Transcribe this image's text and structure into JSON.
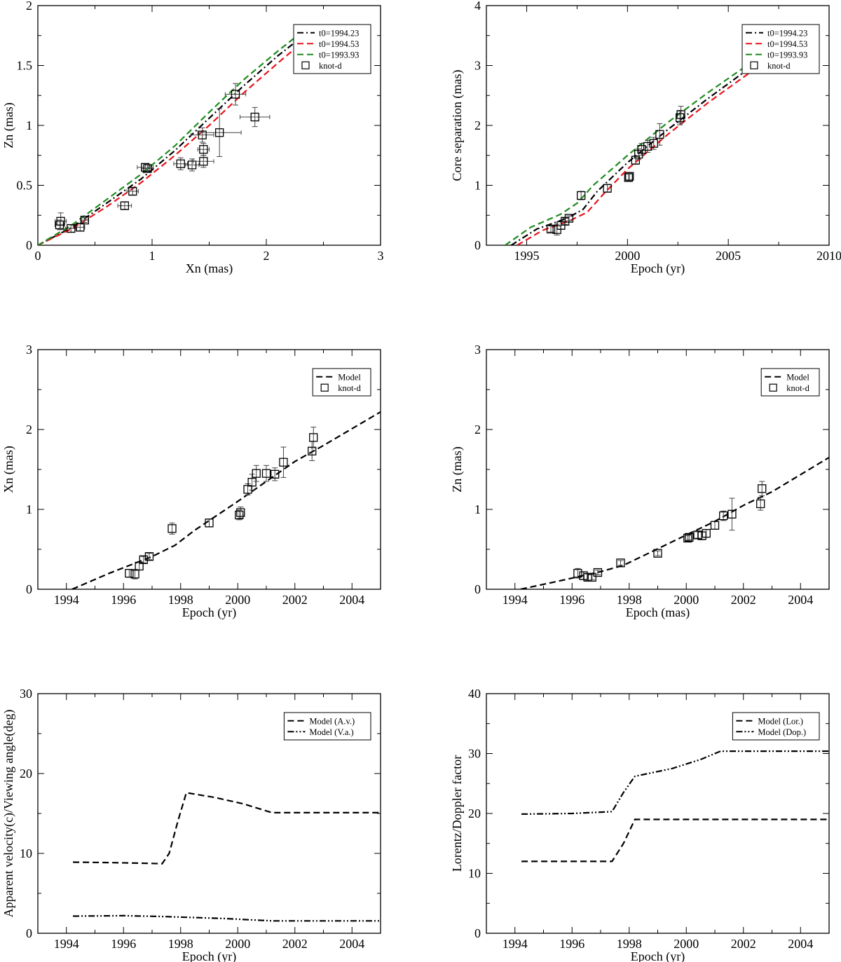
{
  "colors": {
    "black": "#000000",
    "red": "#e8141a",
    "green": "#1e8c1e"
  },
  "chart_data": [
    {
      "id": "p1",
      "type": "scatter",
      "xlabel": "Xn (mas)",
      "ylabel": "Zn (mas)",
      "xlim": [
        0,
        3
      ],
      "ylim": [
        0,
        2
      ],
      "xticks": [
        0,
        1,
        2,
        3
      ],
      "yticks": [
        0,
        0.5,
        1,
        1.5,
        2
      ],
      "xtick_labels": [
        "0",
        "1",
        "2",
        "3"
      ],
      "ytick_labels": [
        "0",
        "0.5",
        "1",
        "1.5",
        "2"
      ],
      "grid": false,
      "legend_position": "top-right",
      "series": [
        {
          "name": "t0=1994.23",
          "kind": "line",
          "dash": "dashdot",
          "color": "#000000",
          "x": [
            0,
            0.3,
            0.6,
            0.9,
            1.2,
            1.5,
            1.8,
            2.1,
            2.3
          ],
          "y": [
            0,
            0.15,
            0.35,
            0.55,
            0.79,
            1.06,
            1.33,
            1.58,
            1.73
          ]
        },
        {
          "name": "t0=1994.53",
          "kind": "line",
          "dash": "dash",
          "color": "#e8141a",
          "x": [
            0,
            0.3,
            0.6,
            0.9,
            1.2,
            1.5,
            1.8,
            2.1,
            2.3
          ],
          "y": [
            0,
            0.14,
            0.32,
            0.52,
            0.75,
            1.0,
            1.27,
            1.52,
            1.68
          ]
        },
        {
          "name": "t0=1993.93",
          "kind": "line",
          "dash": "dash",
          "color": "#1e8c1e",
          "x": [
            0,
            0.3,
            0.6,
            0.9,
            1.2,
            1.5,
            1.8,
            2.1,
            2.3
          ],
          "y": [
            0,
            0.17,
            0.38,
            0.59,
            0.83,
            1.11,
            1.38,
            1.62,
            1.77
          ]
        },
        {
          "name": "knot-d",
          "kind": "points",
          "marker": "square",
          "color": "#000000",
          "points": [
            {
              "x": 0.19,
              "y": 0.17,
              "xerr": 0.04,
              "yerr": 0.04
            },
            {
              "x": 0.2,
              "y": 0.2,
              "xerr": 0.05,
              "yerr": 0.07
            },
            {
              "x": 0.29,
              "y": 0.14,
              "xerr": 0.05,
              "yerr": 0.03
            },
            {
              "x": 0.37,
              "y": 0.15,
              "xerr": 0.04,
              "yerr": 0.03
            },
            {
              "x": 0.41,
              "y": 0.21,
              "xerr": 0.03,
              "yerr": 0.02
            },
            {
              "x": 0.76,
              "y": 0.33,
              "xerr": 0.06,
              "yerr": 0.03
            },
            {
              "x": 0.83,
              "y": 0.45,
              "xerr": 0.05,
              "yerr": 0.03
            },
            {
              "x": 0.94,
              "y": 0.65,
              "xerr": 0.07,
              "yerr": 0.03
            },
            {
              "x": 0.96,
              "y": 0.64,
              "xerr": 0.05,
              "yerr": 0.03
            },
            {
              "x": 1.25,
              "y": 0.68,
              "xerr": 0.06,
              "yerr": 0.05
            },
            {
              "x": 1.35,
              "y": 0.67,
              "xerr": 0.06,
              "yerr": 0.05
            },
            {
              "x": 1.44,
              "y": 0.92,
              "xerr": 0.1,
              "yerr": 0.06
            },
            {
              "x": 1.45,
              "y": 0.8,
              "xerr": 0.05,
              "yerr": 0.05
            },
            {
              "x": 1.45,
              "y": 0.7,
              "xerr": 0.09,
              "yerr": 0.05
            },
            {
              "x": 1.59,
              "y": 0.94,
              "xerr": 0.19,
              "yerr": 0.2
            },
            {
              "x": 1.73,
              "y": 1.26,
              "xerr": 0.09,
              "yerr": 0.09
            },
            {
              "x": 1.9,
              "y": 1.07,
              "xerr": 0.13,
              "yerr": 0.08
            }
          ]
        }
      ]
    },
    {
      "id": "p2",
      "type": "scatter",
      "xlabel": "Epoch (yr)",
      "ylabel": "Core separation (mas)",
      "xlim": [
        1993,
        2010
      ],
      "ylim": [
        0,
        4
      ],
      "xticks": [
        1995,
        2000,
        2005,
        2010
      ],
      "yticks": [
        0,
        1,
        2,
        3,
        4
      ],
      "xtick_labels": [
        "1995",
        "2000",
        "2005",
        "2010"
      ],
      "ytick_labels": [
        "0",
        "1",
        "2",
        "3",
        "4"
      ],
      "grid": false,
      "legend_position": "top-right",
      "series": [
        {
          "name": "t0=1994.23",
          "kind": "line",
          "dash": "dashdot",
          "color": "#000000",
          "x": [
            1994.23,
            1995.5,
            1997.0,
            1997.8,
            1998.5,
            2000,
            2002,
            2004,
            2006.55
          ],
          "y": [
            0,
            0.27,
            0.45,
            0.6,
            0.9,
            1.38,
            1.93,
            2.45,
            3.08
          ]
        },
        {
          "name": "t0=1994.53",
          "kind": "line",
          "dash": "dash",
          "color": "#e8141a",
          "x": [
            1994.53,
            1995.8,
            1997.2,
            1998.0,
            1998.8,
            2000,
            2002,
            2004,
            2006.6
          ],
          "y": [
            0,
            0.25,
            0.42,
            0.55,
            0.85,
            1.27,
            1.85,
            2.38,
            3.01
          ]
        },
        {
          "name": "t0=1993.93",
          "kind": "line",
          "dash": "dash",
          "color": "#1e8c1e",
          "x": [
            1993.93,
            1995.2,
            1996.7,
            1997.5,
            1998.3,
            2000,
            2002,
            2004,
            2006.35
          ],
          "y": [
            0,
            0.3,
            0.52,
            0.7,
            1.0,
            1.5,
            2.05,
            2.55,
            3.1
          ]
        },
        {
          "name": "knot-d",
          "kind": "points",
          "marker": "square",
          "color": "#000000",
          "points": [
            {
              "x": 1996.2,
              "y": 0.27,
              "yerr": 0.05
            },
            {
              "x": 1996.5,
              "y": 0.26,
              "yerr": 0.09
            },
            {
              "x": 1996.7,
              "y": 0.33,
              "yerr": 0.06
            },
            {
              "x": 1996.9,
              "y": 0.4,
              "yerr": 0.05
            },
            {
              "x": 1997.1,
              "y": 0.45,
              "yerr": 0.04
            },
            {
              "x": 1997.7,
              "y": 0.83,
              "yerr": 0.07
            },
            {
              "x": 1999.0,
              "y": 0.95,
              "yerr": 0.06
            },
            {
              "x": 2000.05,
              "y": 1.13,
              "yerr": 0.06
            },
            {
              "x": 2000.1,
              "y": 1.15,
              "yerr": 0.06
            },
            {
              "x": 2000.4,
              "y": 1.42,
              "yerr": 0.07
            },
            {
              "x": 2000.55,
              "y": 1.52,
              "yerr": 0.09
            },
            {
              "x": 2000.7,
              "y": 1.6,
              "yerr": 0.1
            },
            {
              "x": 2001.0,
              "y": 1.65,
              "yerr": 0.1
            },
            {
              "x": 2001.3,
              "y": 1.7,
              "yerr": 0.1
            },
            {
              "x": 2001.6,
              "y": 1.85,
              "yerr": 0.18
            },
            {
              "x": 2002.6,
              "y": 2.13,
              "yerr": 0.12
            },
            {
              "x": 2002.65,
              "y": 2.18,
              "yerr": 0.14
            }
          ]
        }
      ]
    },
    {
      "id": "p3",
      "type": "scatter",
      "xlabel": "Epoch (yr)",
      "ylabel": "Xn (mas)",
      "xlim": [
        1993,
        2005
      ],
      "ylim": [
        0,
        3
      ],
      "xticks": [
        1994,
        1996,
        1998,
        2000,
        2002,
        2004
      ],
      "yticks": [
        0,
        1,
        2,
        3
      ],
      "xtick_labels": [
        "1994",
        "1996",
        "1998",
        "2000",
        "2002",
        "2004"
      ],
      "ytick_labels": [
        "0",
        "1",
        "2",
        "3"
      ],
      "grid": false,
      "legend_position": "top-right",
      "series": [
        {
          "name": "Model",
          "kind": "line",
          "dash": "dash",
          "color": "#000000",
          "x": [
            1994.2,
            1995.5,
            1997.0,
            1997.8,
            1998.5,
            2000,
            2001,
            2002,
            2003,
            2005
          ],
          "y": [
            0,
            0.2,
            0.41,
            0.55,
            0.74,
            1.1,
            1.35,
            1.6,
            1.8,
            2.22
          ]
        },
        {
          "name": "knot-d",
          "kind": "points",
          "marker": "square",
          "color": "#000000",
          "points": [
            {
              "x": 1996.2,
              "y": 0.2,
              "yerr": 0.05
            },
            {
              "x": 1996.4,
              "y": 0.19,
              "yerr": 0.06
            },
            {
              "x": 1996.55,
              "y": 0.29,
              "yerr": 0.05
            },
            {
              "x": 1996.7,
              "y": 0.37,
              "yerr": 0.04
            },
            {
              "x": 1996.9,
              "y": 0.41,
              "yerr": 0.04
            },
            {
              "x": 1997.7,
              "y": 0.76,
              "yerr": 0.07
            },
            {
              "x": 1999.0,
              "y": 0.83,
              "yerr": 0.05
            },
            {
              "x": 2000.05,
              "y": 0.93,
              "yerr": 0.06
            },
            {
              "x": 2000.1,
              "y": 0.96,
              "yerr": 0.07
            },
            {
              "x": 2000.35,
              "y": 1.25,
              "yerr": 0.07
            },
            {
              "x": 2000.5,
              "y": 1.34,
              "yerr": 0.1
            },
            {
              "x": 2000.65,
              "y": 1.45,
              "yerr": 0.1
            },
            {
              "x": 2001.0,
              "y": 1.45,
              "yerr": 0.1
            },
            {
              "x": 2001.3,
              "y": 1.44,
              "yerr": 0.08
            },
            {
              "x": 2001.6,
              "y": 1.59,
              "yerr": 0.19
            },
            {
              "x": 2002.6,
              "y": 1.73,
              "yerr": 0.12
            },
            {
              "x": 2002.65,
              "y": 1.9,
              "yerr": 0.13
            }
          ]
        }
      ]
    },
    {
      "id": "p4",
      "type": "scatter",
      "xlabel": "Epoch (mas)",
      "ylabel": "Zn (mas)",
      "xlim": [
        1993,
        2005
      ],
      "ylim": [
        0,
        3
      ],
      "xticks": [
        1994,
        1996,
        1998,
        2000,
        2002,
        2004
      ],
      "yticks": [
        0,
        1,
        2,
        3
      ],
      "xtick_labels": [
        "1994",
        "1996",
        "1998",
        "2000",
        "2002",
        "2004"
      ],
      "ytick_labels": [
        "0",
        "1",
        "2",
        "3"
      ],
      "grid": false,
      "legend_position": "top-right",
      "series": [
        {
          "name": "Model",
          "kind": "line",
          "dash": "dash",
          "color": "#000000",
          "x": [
            1994.2,
            1995.5,
            1997.0,
            1997.8,
            1998.5,
            2000,
            2001,
            2002,
            2003,
            2005
          ],
          "y": [
            0,
            0.1,
            0.22,
            0.3,
            0.42,
            0.68,
            0.85,
            1.05,
            1.22,
            1.65
          ]
        },
        {
          "name": "knot-d",
          "kind": "points",
          "marker": "square",
          "color": "#000000",
          "points": [
            {
              "x": 1996.2,
              "y": 0.2,
              "yerr": 0.06
            },
            {
              "x": 1996.4,
              "y": 0.17,
              "yerr": 0.05
            },
            {
              "x": 1996.55,
              "y": 0.15,
              "yerr": 0.04
            },
            {
              "x": 1996.7,
              "y": 0.15,
              "yerr": 0.03
            },
            {
              "x": 1996.9,
              "y": 0.21,
              "yerr": 0.03
            },
            {
              "x": 1997.7,
              "y": 0.33,
              "yerr": 0.03
            },
            {
              "x": 1999.0,
              "y": 0.45,
              "yerr": 0.03
            },
            {
              "x": 2000.05,
              "y": 0.64,
              "yerr": 0.03
            },
            {
              "x": 2000.1,
              "y": 0.65,
              "yerr": 0.03
            },
            {
              "x": 2000.4,
              "y": 0.68,
              "yerr": 0.04
            },
            {
              "x": 2000.55,
              "y": 0.67,
              "yerr": 0.05
            },
            {
              "x": 2000.7,
              "y": 0.7,
              "yerr": 0.05
            },
            {
              "x": 2001.0,
              "y": 0.8,
              "yerr": 0.05
            },
            {
              "x": 2001.3,
              "y": 0.92,
              "yerr": 0.06
            },
            {
              "x": 2001.6,
              "y": 0.94,
              "yerr": 0.2
            },
            {
              "x": 2002.6,
              "y": 1.07,
              "yerr": 0.08
            },
            {
              "x": 2002.65,
              "y": 1.26,
              "yerr": 0.09
            }
          ]
        }
      ]
    },
    {
      "id": "p5",
      "type": "line",
      "xlabel": "Epoch (yr)",
      "ylabel": "Apparent velocity(c)/Viewing angle(deg)",
      "xlim": [
        1993,
        2005
      ],
      "ylim": [
        0,
        30
      ],
      "xticks": [
        1994,
        1996,
        1998,
        2000,
        2002,
        2004
      ],
      "yticks": [
        0,
        10,
        20,
        30
      ],
      "xtick_labels": [
        "1994",
        "1996",
        "1998",
        "2000",
        "2002",
        "2004"
      ],
      "ytick_labels": [
        "0",
        "10",
        "20",
        "30"
      ],
      "grid": false,
      "legend_position": "top-right",
      "series": [
        {
          "name": "Model (A.v.)",
          "kind": "line",
          "dash": "dash",
          "color": "#000000",
          "x": [
            1994.23,
            1995.5,
            1997.0,
            1997.35,
            1997.6,
            1997.9,
            1998.2,
            1999.2,
            2000.2,
            2001.2,
            2005
          ],
          "y": [
            8.9,
            8.85,
            8.75,
            8.7,
            10.0,
            14.0,
            17.6,
            17.0,
            16.2,
            15.1,
            15.1
          ]
        },
        {
          "name": "Model (V.a.)",
          "kind": "line",
          "dash": "dashdotdot",
          "color": "#000000",
          "x": [
            1994.23,
            1996,
            1997.4,
            1998.2,
            1999.5,
            2001.2,
            2005
          ],
          "y": [
            2.15,
            2.2,
            2.1,
            2.0,
            1.85,
            1.55,
            1.55
          ]
        }
      ]
    },
    {
      "id": "p6",
      "type": "line",
      "xlabel": "Epoch (yr)",
      "ylabel": "Lorentz/Doppler factor",
      "xlim": [
        1993,
        2005
      ],
      "ylim": [
        0,
        40
      ],
      "xticks": [
        1994,
        1996,
        1998,
        2000,
        2002,
        2004
      ],
      "yticks": [
        0,
        10,
        20,
        30,
        40
      ],
      "xtick_labels": [
        "1994",
        "1996",
        "1998",
        "2000",
        "2002",
        "2004"
      ],
      "ytick_labels": [
        "0",
        "10",
        "20",
        "30",
        "40"
      ],
      "grid": false,
      "legend_position": "top-right",
      "series": [
        {
          "name": "Model (Lor.)",
          "kind": "line",
          "dash": "dash",
          "color": "#000000",
          "x": [
            1994.23,
            1997.4,
            1997.8,
            1998.2,
            2005
          ],
          "y": [
            12,
            12,
            15,
            19,
            19
          ]
        },
        {
          "name": "Model (Dop.)",
          "kind": "line",
          "dash": "dashdotdot",
          "color": "#000000",
          "x": [
            1994.23,
            1996,
            1997.4,
            1997.8,
            1998.2,
            1999.5,
            2000.5,
            2001.2,
            2005
          ],
          "y": [
            19.9,
            20.0,
            20.3,
            23.5,
            26.2,
            27.5,
            29.0,
            30.4,
            30.4
          ]
        }
      ]
    }
  ]
}
